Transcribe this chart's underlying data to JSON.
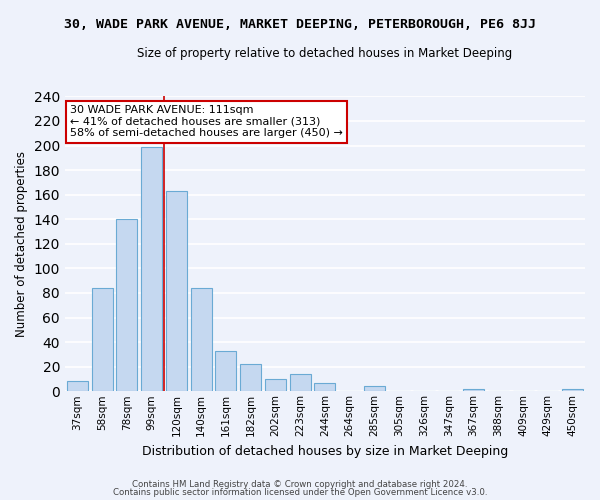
{
  "title_top": "30, WADE PARK AVENUE, MARKET DEEPING, PETERBOROUGH, PE6 8JJ",
  "title_sub": "Size of property relative to detached houses in Market Deeping",
  "xlabel": "Distribution of detached houses by size in Market Deeping",
  "ylabel": "Number of detached properties",
  "bar_labels": [
    "37sqm",
    "58sqm",
    "78sqm",
    "99sqm",
    "120sqm",
    "140sqm",
    "161sqm",
    "182sqm",
    "202sqm",
    "223sqm",
    "244sqm",
    "264sqm",
    "285sqm",
    "305sqm",
    "326sqm",
    "347sqm",
    "367sqm",
    "388sqm",
    "409sqm",
    "429sqm",
    "450sqm"
  ],
  "bar_values": [
    8,
    84,
    140,
    199,
    163,
    84,
    33,
    22,
    10,
    14,
    7,
    0,
    4,
    0,
    0,
    0,
    2,
    0,
    0,
    0,
    2
  ],
  "bar_color": "#c5d8f0",
  "bar_edge_color": "#6aaad4",
  "annotation_title": "30 WADE PARK AVENUE: 111sqm",
  "annotation_line1": "← 41% of detached houses are smaller (313)",
  "annotation_line2": "58% of semi-detached houses are larger (450) →",
  "annotation_box_color": "white",
  "annotation_box_edge": "#cc0000",
  "vline_color": "#cc0000",
  "ylim": [
    0,
    240
  ],
  "yticks": [
    0,
    20,
    40,
    60,
    80,
    100,
    120,
    140,
    160,
    180,
    200,
    220,
    240
  ],
  "footnote1": "Contains HM Land Registry data © Crown copyright and database right 2024.",
  "footnote2": "Contains public sector information licensed under the Open Government Licence v3.0.",
  "bg_color": "#eef2fb",
  "grid_color": "white",
  "title_fontsize": 9.5,
  "subtitle_fontsize": 8.5,
  "property_sqm_index": 3.5
}
